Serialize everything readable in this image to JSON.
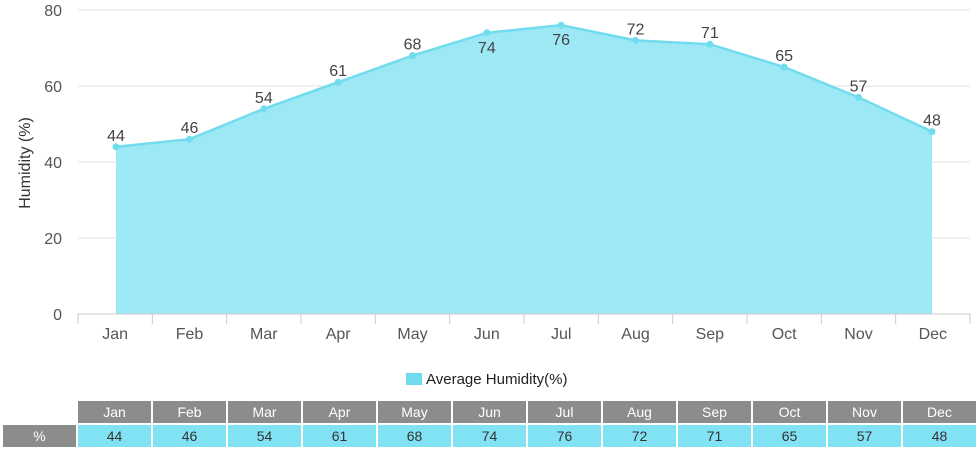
{
  "chart_data": {
    "type": "area",
    "categories": [
      "Jan",
      "Feb",
      "Mar",
      "Apr",
      "May",
      "Jun",
      "Jul",
      "Aug",
      "Sep",
      "Oct",
      "Nov",
      "Dec"
    ],
    "series": [
      {
        "name": "Average Humidity(%)",
        "values": [
          44,
          46,
          54,
          61,
          68,
          74,
          76,
          72,
          71,
          65,
          57,
          48
        ]
      }
    ],
    "ylabel": "Humidity (%)",
    "xlabel": "",
    "ylim": [
      0,
      80
    ],
    "yticks": [
      0,
      20,
      40,
      60,
      80
    ],
    "grid": true,
    "legend_position": "bottom"
  },
  "colors": {
    "area_fill": "#9ce8f5",
    "line": "#72dcef",
    "table_header_bg": "#8c8c8c",
    "table_value_bg": "#80e2f2"
  },
  "legend": {
    "label": "Average Humidity(%)"
  },
  "table": {
    "row_label": "%"
  }
}
